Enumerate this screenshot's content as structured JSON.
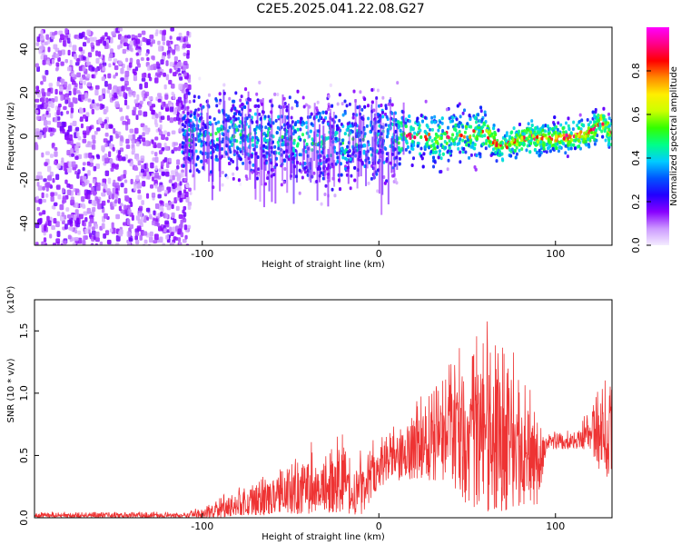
{
  "title": "C2E5.2025.041.22.08.G27",
  "chart_data": [
    {
      "type": "heatmap",
      "xlabel": "Height of straight line (km)",
      "ylabel": "Frequency (Hz)",
      "xlim": [
        -195,
        132
      ],
      "ylim": [
        -50,
        50
      ],
      "xticks": [
        -100,
        0,
        100
      ],
      "yticks": [
        -40,
        -20,
        0,
        20,
        40
      ],
      "colorbar": {
        "label": "Normalized spectral amplitude",
        "range": [
          0,
          1
        ],
        "ticks": [
          "0.0",
          "0.2",
          "0.4",
          "0.6",
          "0.8"
        ],
        "colormap": [
          "#f4ecff",
          "#cc99ff",
          "#8800ff",
          "#2200ff",
          "#0055ff",
          "#00ccff",
          "#00ff88",
          "#33ff00",
          "#ccff00",
          "#ffee00",
          "#ff8800",
          "#ff0000",
          "#ff0088",
          "#ff00ff"
        ]
      },
      "frequency_trend": {
        "x": [
          -110,
          -80,
          -55,
          -30,
          -10,
          10,
          20,
          30,
          45,
          60,
          65,
          70,
          80,
          90,
          100,
          110,
          115,
          120,
          125,
          130
        ],
        "y": [
          0,
          2,
          0,
          -2,
          0,
          0,
          2,
          -1,
          2,
          2,
          -2,
          -4,
          0,
          0,
          0,
          1,
          2,
          3,
          8,
          2
        ]
      }
    },
    {
      "type": "line",
      "xlabel": "Height of straight line (km)",
      "ylabel": "SNR (10 * v/v)",
      "scale_note": "(x10⁴)",
      "xlim": [
        -195,
        132
      ],
      "ylim": [
        0,
        1.75
      ],
      "xticks": [
        -100,
        0,
        100
      ],
      "yticks": [
        "0.0",
        "0.5",
        "1.0",
        "1.5"
      ],
      "color": "#ee3333",
      "envelope": {
        "x": [
          -195,
          -110,
          -100,
          -90,
          -80,
          -70,
          -60,
          -50,
          -40,
          -30,
          -20,
          -15,
          -10,
          0,
          10,
          20,
          30,
          40,
          50,
          60,
          70,
          80,
          90,
          95,
          110,
          120,
          125,
          132
        ],
        "min": [
          0.0,
          0.0,
          0.0,
          0.0,
          0.02,
          0.02,
          0.02,
          0.03,
          0.03,
          0.04,
          0.04,
          0.03,
          0.02,
          0.25,
          0.3,
          0.3,
          0.3,
          0.3,
          0.1,
          0.05,
          0.05,
          0.1,
          0.1,
          0.55,
          0.55,
          0.55,
          0.35,
          0.3
        ],
        "max": [
          0.05,
          0.05,
          0.1,
          0.2,
          0.25,
          0.35,
          0.4,
          0.55,
          0.6,
          0.65,
          0.7,
          0.5,
          0.55,
          0.7,
          0.75,
          0.95,
          1.05,
          1.4,
          1.5,
          1.65,
          1.6,
          1.2,
          0.9,
          0.7,
          0.7,
          0.95,
          1.15,
          1.2
        ]
      }
    }
  ]
}
